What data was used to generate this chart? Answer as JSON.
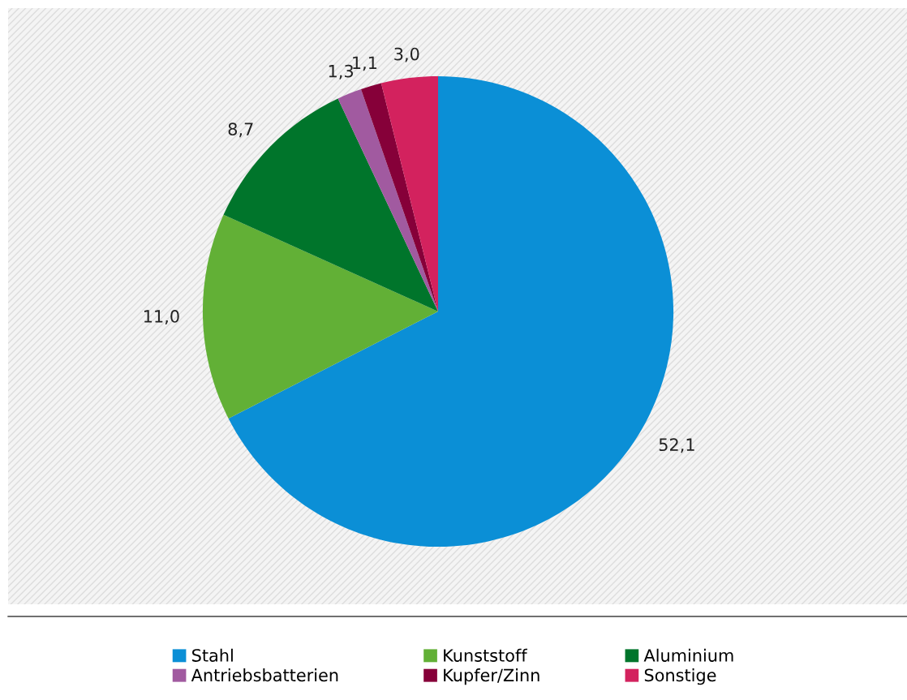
{
  "chart_data": {
    "type": "pie",
    "categories": [
      "Stahl",
      "Kunststoff",
      "Aluminium",
      "Antriebsbatterien",
      "Kupfer/Zinn",
      "Sonstige"
    ],
    "values": [
      52.1,
      11.0,
      8.7,
      1.3,
      1.1,
      3.0
    ],
    "value_labels": [
      "52,1",
      "11,0",
      "8,7",
      "1,3",
      "1,1",
      "3,0"
    ],
    "colors": [
      "#0b8fd6",
      "#62b036",
      "#00752b",
      "#a15aa0",
      "#860039",
      "#d3225e"
    ],
    "legend": "bottom"
  }
}
